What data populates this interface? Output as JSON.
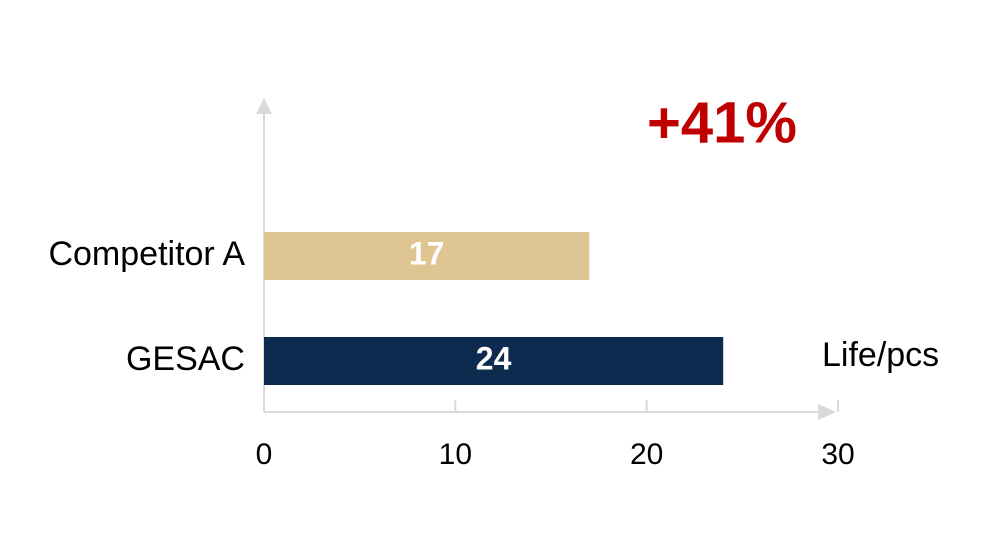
{
  "chart_data": {
    "type": "bar",
    "orientation": "horizontal",
    "categories": [
      "Competitor A",
      "GESAC"
    ],
    "values": [
      17,
      24
    ],
    "colors": [
      "#dfc592",
      "#0d2b4e"
    ],
    "xlim": [
      0,
      30
    ],
    "xticks": [
      0,
      10,
      20,
      30
    ],
    "xlabel": "Life/pcs",
    "annotation": "+41%"
  }
}
